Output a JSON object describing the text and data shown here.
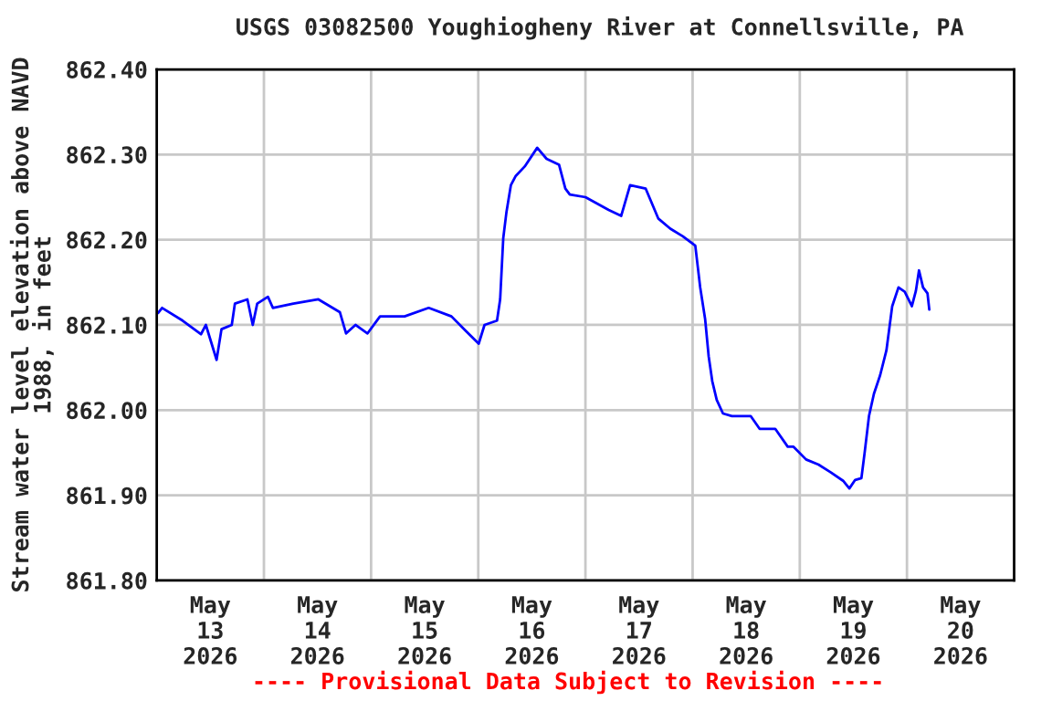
{
  "chart_data": {
    "type": "line",
    "title": "USGS 03082500 Youghiogheny River at Connellsville, PA",
    "ylabel": "Stream water level elevation above NAVD\n1988, in feet",
    "annotations": [
      "---- Provisional Data Subject to Revision ----"
    ],
    "x": [
      "2026-05-13T00:18",
      "2026-05-13T01:12",
      "2026-05-13T05:48",
      "2026-05-13T09:54",
      "2026-05-13T11:00",
      "2026-05-13T13:24",
      "2026-05-13T14:30",
      "2026-05-13T16:48",
      "2026-05-13T17:30",
      "2026-05-13T20:18",
      "2026-05-13T21:30",
      "2026-05-13T22:30",
      "2026-05-14T00:54",
      "2026-05-14T02:00",
      "2026-05-14T06:36",
      "2026-05-14T12:12",
      "2026-05-14T17:00",
      "2026-05-14T18:24",
      "2026-05-14T20:30",
      "2026-05-14T23:12",
      "2026-05-15T02:00",
      "2026-05-15T07:30",
      "2026-05-15T12:54",
      "2026-05-15T18:00",
      "2026-05-15T21:12",
      "2026-05-16T00:06",
      "2026-05-16T01:24",
      "2026-05-16T04:12",
      "2026-05-16T04:54",
      "2026-05-16T05:36",
      "2026-05-16T06:18",
      "2026-05-16T07:18",
      "2026-05-16T08:24",
      "2026-05-16T10:24",
      "2026-05-16T13:12",
      "2026-05-16T15:18",
      "2026-05-16T18:06",
      "2026-05-16T19:30",
      "2026-05-16T20:30",
      "2026-05-17T00:00",
      "2026-05-17T05:12",
      "2026-05-17T08:00",
      "2026-05-17T10:00",
      "2026-05-17T13:30",
      "2026-05-17T16:18",
      "2026-05-17T19:00",
      "2026-05-17T21:48",
      "2026-05-18T00:36",
      "2026-05-18T01:42",
      "2026-05-18T02:48",
      "2026-05-18T03:36",
      "2026-05-18T04:24",
      "2026-05-18T05:24",
      "2026-05-18T06:48",
      "2026-05-18T08:48",
      "2026-05-18T13:00",
      "2026-05-18T15:00",
      "2026-05-18T18:30",
      "2026-05-18T21:18",
      "2026-05-18T22:36",
      "2026-05-19T01:24",
      "2026-05-19T04:12",
      "2026-05-19T06:54",
      "2026-05-19T09:42",
      "2026-05-19T11:06",
      "2026-05-19T12:24",
      "2026-05-19T13:48",
      "2026-05-19T14:30",
      "2026-05-19T15:30",
      "2026-05-19T16:36",
      "2026-05-19T18:00",
      "2026-05-19T19:24",
      "2026-05-19T20:42",
      "2026-05-19T22:06",
      "2026-05-19T23:30",
      "2026-05-20T01:06",
      "2026-05-20T02:00",
      "2026-05-20T02:42",
      "2026-05-20T03:36",
      "2026-05-20T04:36",
      "2026-05-20T05:00"
    ],
    "series": [
      {
        "color": "#0000ff",
        "values": [
          862.114,
          862.12,
          862.105,
          862.089,
          862.1,
          862.059,
          862.095,
          862.1,
          862.125,
          862.13,
          862.1,
          862.125,
          862.133,
          862.12,
          862.125,
          862.13,
          862.115,
          862.09,
          862.1,
          862.09,
          862.11,
          862.11,
          862.12,
          862.11,
          862.093,
          862.078,
          862.1,
          862.105,
          862.13,
          862.202,
          862.232,
          862.264,
          862.275,
          862.286,
          862.308,
          862.295,
          862.288,
          862.26,
          862.253,
          862.25,
          862.235,
          862.228,
          862.264,
          862.26,
          862.225,
          862.213,
          862.204,
          862.193,
          862.144,
          862.107,
          862.063,
          862.034,
          862.012,
          861.996,
          861.993,
          861.993,
          861.978,
          861.978,
          861.957,
          861.957,
          861.942,
          861.936,
          861.927,
          861.917,
          861.908,
          861.918,
          861.92,
          861.949,
          861.993,
          862.019,
          862.041,
          862.07,
          862.122,
          862.144,
          862.139,
          862.122,
          862.14,
          862.164,
          862.144,
          862.137,
          862.118
        ]
      }
    ],
    "xlim": [
      "2026-05-13T00:00",
      "2026-05-21T00:00"
    ],
    "xticks": [
      {
        "value": "2026-05-13T12:00",
        "label": "May\n13\n2026"
      },
      {
        "value": "2026-05-14T00:00",
        "label": null
      },
      {
        "value": "2026-05-14T12:00",
        "label": "May\n14\n2026"
      },
      {
        "value": "2026-05-15T00:00",
        "label": null
      },
      {
        "value": "2026-05-15T12:00",
        "label": "May\n15\n2026"
      },
      {
        "value": "2026-05-16T00:00",
        "label": null
      },
      {
        "value": "2026-05-16T12:00",
        "label": "May\n16\n2026"
      },
      {
        "value": "2026-05-17T00:00",
        "label": null
      },
      {
        "value": "2026-05-17T12:00",
        "label": "May\n17\n2026"
      },
      {
        "value": "2026-05-18T00:00",
        "label": null
      },
      {
        "value": "2026-05-18T12:00",
        "label": "May\n18\n2026"
      },
      {
        "value": "2026-05-19T00:00",
        "label": null
      },
      {
        "value": "2026-05-19T12:00",
        "label": "May\n19\n2026"
      },
      {
        "value": "2026-05-20T00:00",
        "label": null
      },
      {
        "value": "2026-05-20T12:00",
        "label": "May\n20\n2026"
      }
    ],
    "ylim": [
      861.8,
      862.4
    ],
    "yticks": [
      {
        "value": 861.8,
        "label": "861.80"
      },
      {
        "value": 861.9,
        "label": "861.90"
      },
      {
        "value": 862.0,
        "label": "862.00"
      },
      {
        "value": 862.1,
        "label": "862.10"
      },
      {
        "value": 862.2,
        "label": "862.20"
      },
      {
        "value": 862.3,
        "label": "862.30"
      },
      {
        "value": 862.4,
        "label": "862.40"
      }
    ],
    "grid": true
  }
}
